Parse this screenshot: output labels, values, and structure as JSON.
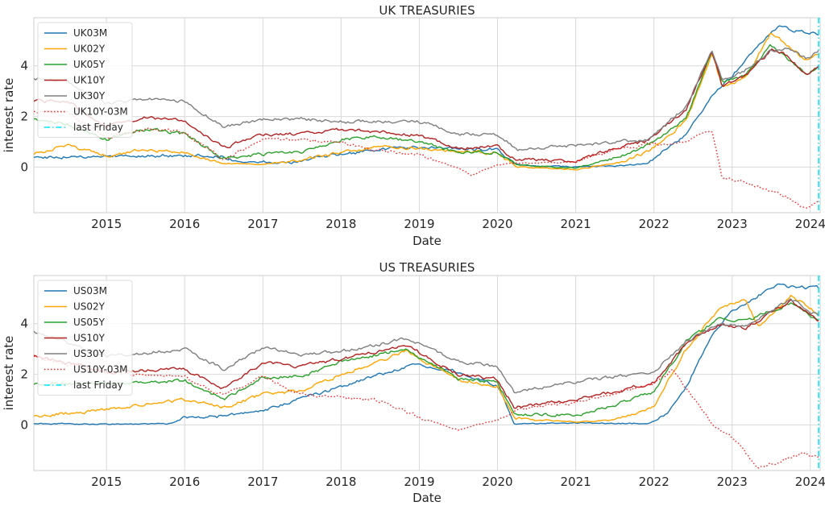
{
  "chart_data": [
    {
      "type": "line",
      "title": "UK TREASURIES",
      "xlabel": "Date",
      "ylabel": "interest rate",
      "xlim": [
        "2014-01-27",
        "2024-02-16"
      ],
      "ylim": [
        -1.8,
        5.9
      ],
      "xticks": [
        "2015",
        "2016",
        "2017",
        "2018",
        "2019",
        "2020",
        "2021",
        "2022",
        "2023",
        "2024"
      ],
      "yticks": [
        0,
        2,
        4
      ],
      "grid": true,
      "legend_position": "upper-left",
      "last_friday": "2024-02-09",
      "series": [
        {
          "name": "UK03M",
          "color": "#1f77b4",
          "style": "solid",
          "x": [
            "2014-01-27",
            "2014-07-01",
            "2015-01-01",
            "2015-07-01",
            "2016-01-01",
            "2016-07-01",
            "2016-09-01",
            "2017-01-01",
            "2017-07-01",
            "2017-11-01",
            "2018-07-01",
            "2019-01-01",
            "2019-07-01",
            "2020-01-01",
            "2020-03-15",
            "2020-07-01",
            "2021-01-01",
            "2021-07-01",
            "2021-12-01",
            "2022-02-01",
            "2022-06-01",
            "2022-10-01",
            "2023-01-01",
            "2023-03-01",
            "2023-07-01",
            "2023-08-15",
            "2023-10-01",
            "2024-01-01",
            "2024-02-09"
          ],
          "y": [
            0.38,
            0.42,
            0.44,
            0.46,
            0.45,
            0.42,
            0.2,
            0.2,
            0.22,
            0.45,
            0.7,
            0.78,
            0.75,
            0.7,
            0.15,
            0.05,
            0.02,
            0.04,
            0.15,
            0.55,
            1.3,
            2.8,
            3.6,
            4.2,
            5.3,
            5.6,
            5.45,
            5.3,
            5.22
          ]
        },
        {
          "name": "UK02Y",
          "color": "#ffa500",
          "style": "solid",
          "x": [
            "2014-01-27",
            "2014-07-01",
            "2015-01-01",
            "2015-07-01",
            "2016-01-01",
            "2016-07-01",
            "2017-01-01",
            "2017-07-01",
            "2018-01-01",
            "2018-07-01",
            "2019-01-01",
            "2019-07-01",
            "2020-01-01",
            "2020-04-01",
            "2021-01-01",
            "2021-07-01",
            "2021-12-01",
            "2022-06-01",
            "2022-09-28",
            "2022-11-15",
            "2023-03-01",
            "2023-07-01",
            "2023-09-01",
            "2023-12-15",
            "2024-02-09"
          ],
          "y": [
            0.5,
            0.85,
            0.45,
            0.7,
            0.55,
            0.15,
            0.1,
            0.3,
            0.6,
            0.8,
            0.75,
            0.6,
            0.55,
            0.0,
            -0.1,
            0.15,
            0.6,
            1.8,
            4.5,
            3.2,
            3.5,
            5.3,
            4.9,
            4.2,
            4.45
          ]
        },
        {
          "name": "UK05Y",
          "color": "#2ca02c",
          "style": "solid",
          "x": [
            "2014-01-27",
            "2014-07-01",
            "2015-01-01",
            "2015-07-01",
            "2016-01-01",
            "2016-07-01",
            "2017-01-01",
            "2017-07-01",
            "2018-01-01",
            "2018-07-01",
            "2019-01-01",
            "2019-07-01",
            "2020-01-01",
            "2020-04-01",
            "2021-01-01",
            "2021-07-01",
            "2021-12-01",
            "2022-06-01",
            "2022-09-28",
            "2022-11-15",
            "2023-03-01",
            "2023-07-01",
            "2023-09-01",
            "2023-12-15",
            "2024-02-09"
          ],
          "y": [
            1.9,
            1.7,
            1.1,
            1.5,
            1.3,
            0.35,
            0.5,
            0.6,
            1.1,
            1.2,
            1.0,
            0.55,
            0.6,
            0.1,
            -0.05,
            0.35,
            0.85,
            1.9,
            4.6,
            3.4,
            3.6,
            4.8,
            4.4,
            3.7,
            3.95
          ]
        },
        {
          "name": "UK10Y",
          "color": "#b22222",
          "style": "solid",
          "x": [
            "2014-01-27",
            "2014-07-01",
            "2015-01-01",
            "2015-07-01",
            "2016-01-01",
            "2016-07-01",
            "2017-01-01",
            "2017-07-01",
            "2018-01-01",
            "2018-07-01",
            "2019-01-01",
            "2019-07-01",
            "2020-01-01",
            "2020-04-01",
            "2021-01-01",
            "2021-07-01",
            "2021-12-01",
            "2022-06-01",
            "2022-09-28",
            "2022-11-15",
            "2023-03-01",
            "2023-07-01",
            "2023-09-01",
            "2023-12-15",
            "2024-02-09"
          ],
          "y": [
            2.6,
            2.6,
            1.6,
            2.0,
            1.8,
            0.75,
            1.3,
            1.3,
            1.5,
            1.4,
            1.25,
            0.75,
            0.8,
            0.3,
            0.25,
            0.75,
            1.05,
            2.3,
            4.6,
            3.2,
            3.6,
            4.6,
            4.5,
            3.6,
            4.0
          ]
        },
        {
          "name": "UK30Y",
          "color": "#7f7f7f",
          "style": "solid",
          "x": [
            "2014-01-27",
            "2014-07-01",
            "2015-01-01",
            "2015-07-01",
            "2016-01-01",
            "2016-07-01",
            "2017-01-01",
            "2017-07-01",
            "2018-01-01",
            "2018-07-01",
            "2019-01-01",
            "2019-07-01",
            "2020-01-01",
            "2020-04-01",
            "2021-01-01",
            "2021-07-01",
            "2021-12-01",
            "2022-06-01",
            "2022-09-28",
            "2022-11-15",
            "2023-03-01",
            "2023-07-01",
            "2023-09-01",
            "2023-12-15",
            "2024-02-09"
          ],
          "y": [
            3.5,
            3.4,
            2.5,
            2.7,
            2.6,
            1.6,
            1.9,
            1.9,
            1.8,
            1.8,
            1.8,
            1.3,
            1.3,
            0.7,
            0.85,
            1.0,
            1.05,
            2.4,
            4.6,
            3.4,
            3.8,
            4.6,
            4.7,
            4.3,
            4.6
          ]
        },
        {
          "name": "UK10Y-03M",
          "color": "#ff2020",
          "style": "dotted",
          "x": [
            "2014-01-27",
            "2014-07-01",
            "2015-01-01",
            "2015-07-01",
            "2016-01-01",
            "2016-07-01",
            "2017-01-01",
            "2017-07-01",
            "2018-01-01",
            "2018-07-01",
            "2019-01-01",
            "2019-07-01",
            "2019-09-01",
            "2020-01-01",
            "2020-04-01",
            "2021-01-01",
            "2021-07-01",
            "2021-12-01",
            "2022-06-01",
            "2022-09-28",
            "2022-11-15",
            "2023-03-01",
            "2023-07-01",
            "2023-09-01",
            "2023-12-15",
            "2024-02-09"
          ],
          "y": [
            2.2,
            2.2,
            1.2,
            1.5,
            1.35,
            0.3,
            1.1,
            1.1,
            1.0,
            0.65,
            0.5,
            -0.05,
            -0.3,
            0.1,
            0.15,
            0.2,
            0.7,
            0.9,
            1.0,
            1.5,
            -0.4,
            -0.6,
            -1.0,
            -1.1,
            -1.7,
            -1.3
          ]
        },
        {
          "name": "last Friday",
          "color": "#00e5ff",
          "style": "dashdot"
        }
      ]
    },
    {
      "type": "line",
      "title": "US TREASURIES",
      "xlabel": "Date",
      "ylabel": "interest rate",
      "xlim": [
        "2014-01-27",
        "2024-02-16"
      ],
      "ylim": [
        -1.8,
        5.9
      ],
      "xticks": [
        "2015",
        "2016",
        "2017",
        "2018",
        "2019",
        "2020",
        "2021",
        "2022",
        "2023",
        "2024"
      ],
      "yticks": [
        0,
        2,
        4
      ],
      "grid": true,
      "legend_position": "upper-left",
      "last_friday": "2024-02-09",
      "series": [
        {
          "name": "US03M",
          "color": "#1f77b4",
          "style": "solid",
          "x": [
            "2014-01-27",
            "2015-01-01",
            "2015-11-01",
            "2016-01-01",
            "2016-07-01",
            "2017-01-01",
            "2017-07-01",
            "2018-01-01",
            "2018-07-01",
            "2019-01-01",
            "2019-07-01",
            "2020-01-01",
            "2020-03-20",
            "2021-01-01",
            "2021-12-01",
            "2022-03-01",
            "2022-06-01",
            "2022-10-01",
            "2023-01-01",
            "2023-05-01",
            "2023-08-01",
            "2024-02-09"
          ],
          "y": [
            0.05,
            0.03,
            0.05,
            0.3,
            0.35,
            0.55,
            1.05,
            1.5,
            2.0,
            2.4,
            2.1,
            1.55,
            0.05,
            0.08,
            0.05,
            0.4,
            1.5,
            3.6,
            4.5,
            5.1,
            5.5,
            5.4
          ]
        },
        {
          "name": "US02Y",
          "color": "#ffa500",
          "style": "solid",
          "x": [
            "2014-01-27",
            "2015-01-01",
            "2016-01-01",
            "2016-07-01",
            "2017-01-01",
            "2017-07-01",
            "2018-01-01",
            "2018-11-01",
            "2019-07-01",
            "2020-01-01",
            "2020-03-20",
            "2021-01-01",
            "2021-07-01",
            "2022-01-01",
            "2022-06-01",
            "2022-11-01",
            "2023-03-01",
            "2023-05-01",
            "2023-10-01",
            "2024-02-09"
          ],
          "y": [
            0.35,
            0.6,
            1.0,
            0.7,
            1.2,
            1.35,
            2.0,
            2.9,
            1.8,
            1.55,
            0.25,
            0.12,
            0.2,
            0.75,
            3.0,
            4.6,
            5.0,
            3.9,
            5.1,
            4.4
          ]
        },
        {
          "name": "US05Y",
          "color": "#2ca02c",
          "style": "solid",
          "x": [
            "2014-01-27",
            "2015-01-01",
            "2016-01-01",
            "2016-07-01",
            "2017-01-01",
            "2017-07-01",
            "2018-01-01",
            "2018-11-01",
            "2019-07-01",
            "2020-01-01",
            "2020-03-20",
            "2021-01-01",
            "2021-07-01",
            "2022-01-01",
            "2022-06-01",
            "2022-11-01",
            "2023-03-01",
            "2023-10-01",
            "2024-02-09"
          ],
          "y": [
            1.6,
            1.65,
            1.75,
            1.0,
            1.9,
            1.9,
            2.5,
            3.0,
            1.8,
            1.7,
            0.4,
            0.4,
            0.8,
            1.3,
            3.3,
            4.2,
            4.1,
            4.8,
            4.1
          ]
        },
        {
          "name": "US10Y",
          "color": "#b22222",
          "style": "solid",
          "x": [
            "2014-01-27",
            "2015-01-01",
            "2016-01-01",
            "2016-07-01",
            "2017-01-01",
            "2017-07-01",
            "2018-01-01",
            "2018-11-01",
            "2019-07-01",
            "2020-01-01",
            "2020-03-20",
            "2021-01-01",
            "2021-07-01",
            "2022-01-01",
            "2022-06-01",
            "2022-11-01",
            "2023-03-01",
            "2023-10-01",
            "2024-02-09"
          ],
          "y": [
            2.75,
            2.1,
            2.2,
            1.45,
            2.45,
            2.3,
            2.6,
            3.15,
            2.0,
            1.8,
            0.7,
            1.0,
            1.3,
            1.7,
            3.2,
            4.0,
            3.8,
            4.9,
            4.1
          ]
        },
        {
          "name": "US30Y",
          "color": "#7f7f7f",
          "style": "solid",
          "x": [
            "2014-01-27",
            "2015-01-01",
            "2016-01-01",
            "2016-07-01",
            "2017-01-01",
            "2017-07-01",
            "2018-01-01",
            "2018-11-01",
            "2019-07-01",
            "2020-01-01",
            "2020-03-20",
            "2021-01-01",
            "2021-07-01",
            "2022-01-01",
            "2022-06-01",
            "2022-11-01",
            "2023-03-01",
            "2023-10-01",
            "2024-02-09"
          ],
          "y": [
            3.7,
            2.7,
            3.0,
            2.2,
            3.05,
            2.8,
            2.9,
            3.4,
            2.5,
            2.3,
            1.3,
            1.7,
            1.9,
            2.1,
            3.3,
            4.0,
            3.9,
            5.0,
            4.3
          ]
        },
        {
          "name": "US10Y-03M",
          "color": "#ff2020",
          "style": "dotted",
          "x": [
            "2014-01-27",
            "2015-01-01",
            "2016-01-01",
            "2016-07-01",
            "2017-01-01",
            "2017-07-01",
            "2018-01-01",
            "2018-07-01",
            "2019-01-01",
            "2019-07-01",
            "2020-01-01",
            "2020-03-20",
            "2021-01-01",
            "2021-07-01",
            "2022-01-01",
            "2022-04-01",
            "2022-10-01",
            "2023-01-01",
            "2023-05-01",
            "2023-12-01",
            "2024-02-09"
          ],
          "y": [
            2.7,
            2.05,
            1.9,
            1.15,
            1.9,
            1.2,
            1.1,
            0.95,
            0.3,
            -0.2,
            0.2,
            0.6,
            0.9,
            1.25,
            1.65,
            2.2,
            0.0,
            -0.5,
            -1.7,
            -1.1,
            -1.3
          ]
        },
        {
          "name": "last Friday",
          "color": "#00e5ff",
          "style": "dashdot"
        }
      ]
    }
  ]
}
